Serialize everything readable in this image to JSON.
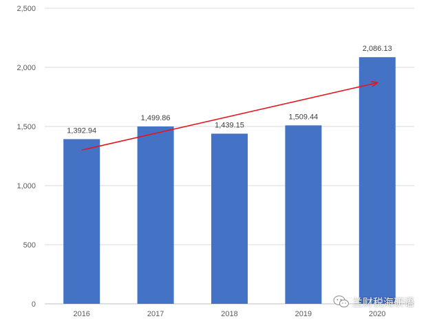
{
  "chart_data": {
    "type": "bar",
    "categories": [
      "2016",
      "2017",
      "2018",
      "2019",
      "2020"
    ],
    "values": [
      1392.94,
      1499.86,
      1439.15,
      1509.44,
      2086.13
    ],
    "data_labels": [
      "1,392.94",
      "1,499.86",
      "1,439.15",
      "1,509.44",
      "2,086.13"
    ],
    "y_ticks": [
      0,
      500,
      1000,
      1500,
      2000,
      2500
    ],
    "y_tick_labels": [
      "0",
      "500",
      "1,000",
      "1,500",
      "2,000",
      "2,500"
    ],
    "ylim": [
      0,
      2500
    ],
    "grid": true,
    "bar_color": "#4472c4",
    "trend_arrow": {
      "from": [
        "2016",
        1300
      ],
      "to": [
        "2020",
        1870
      ],
      "color": "#e8141b"
    }
  },
  "watermark": {
    "text": "兰财税海研语",
    "icon": "wechat-icon"
  }
}
